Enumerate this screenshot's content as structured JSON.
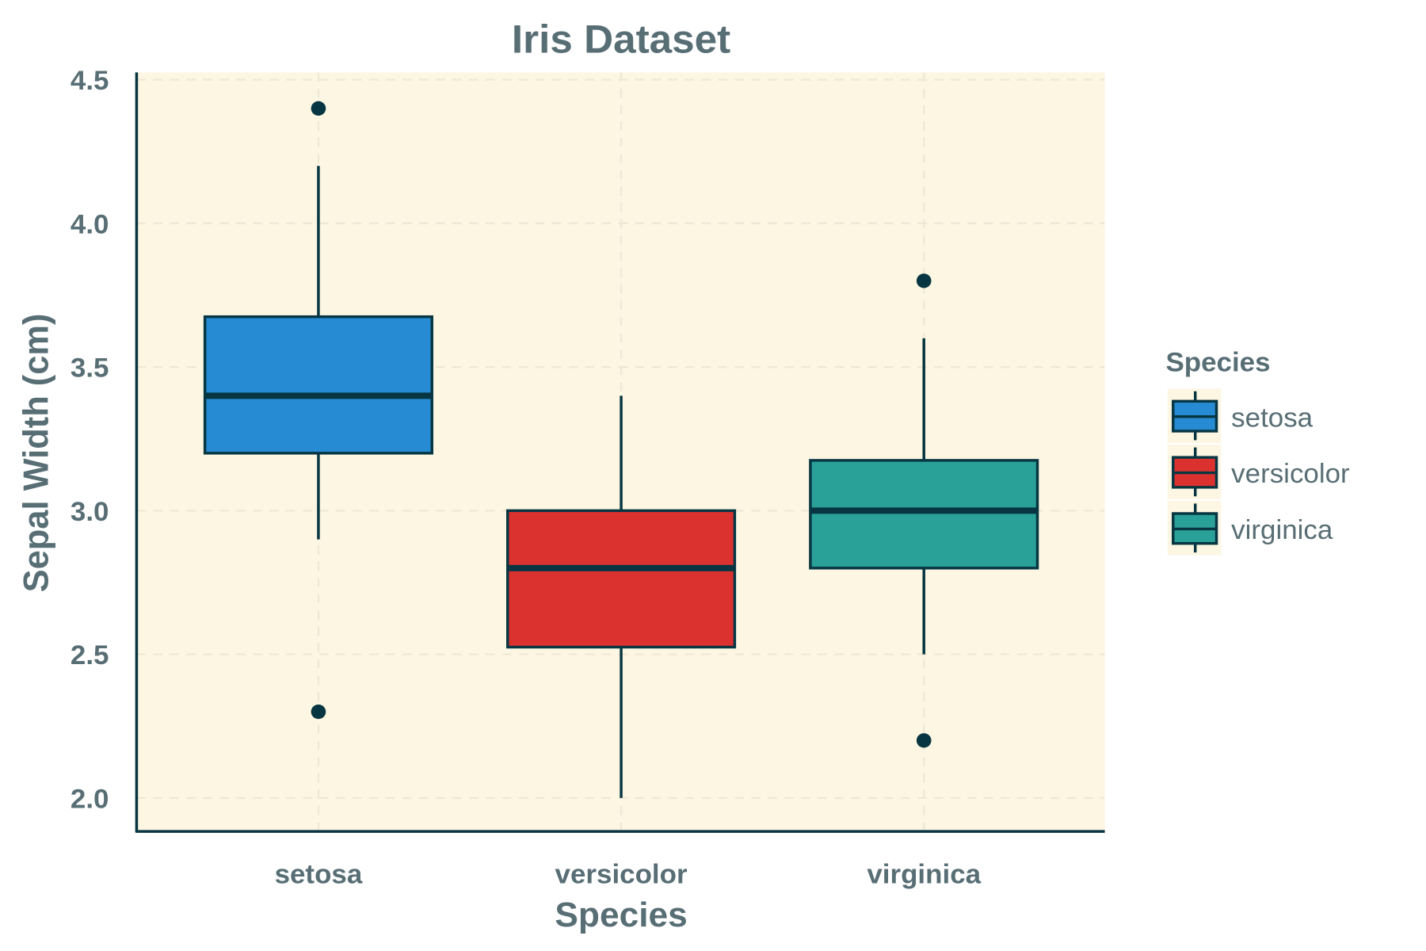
{
  "chart_data": {
    "type": "box",
    "title": "Iris Dataset",
    "xlabel": "Species",
    "ylabel": "Sepal Width (cm)",
    "ylim": [
      1.89,
      4.52
    ],
    "yticks": [
      2.0,
      2.5,
      3.0,
      3.5,
      4.0,
      4.5
    ],
    "ytick_labels": [
      "2.0",
      "2.5",
      "3.0",
      "3.5",
      "4.0",
      "4.5"
    ],
    "categories": [
      "setosa",
      "versicolor",
      "virginica"
    ],
    "grid": true,
    "legend": {
      "title": "Species",
      "placement": "right",
      "entries": [
        "setosa",
        "versicolor",
        "virginica"
      ]
    },
    "series": [
      {
        "name": "setosa",
        "color": "#268bd2",
        "whisker_low": 2.9,
        "q1": 3.2,
        "median": 3.4,
        "q3": 3.675,
        "whisker_high": 4.2,
        "outliers": [
          4.4,
          2.3
        ]
      },
      {
        "name": "versicolor",
        "color": "#dc322f",
        "whisker_low": 2.0,
        "q1": 2.525,
        "median": 2.8,
        "q3": 3.0,
        "whisker_high": 3.4,
        "outliers": []
      },
      {
        "name": "virginica",
        "color": "#2aa198",
        "whisker_low": 2.5,
        "q1": 2.8,
        "median": 3.0,
        "q3": 3.175,
        "whisker_high": 3.6,
        "outliers": [
          3.8,
          2.2
        ]
      }
    ],
    "colors": {
      "panel": "#fdf6e3",
      "line": "#073642",
      "text": "#586e75",
      "grid": "#eee8d5"
    }
  }
}
